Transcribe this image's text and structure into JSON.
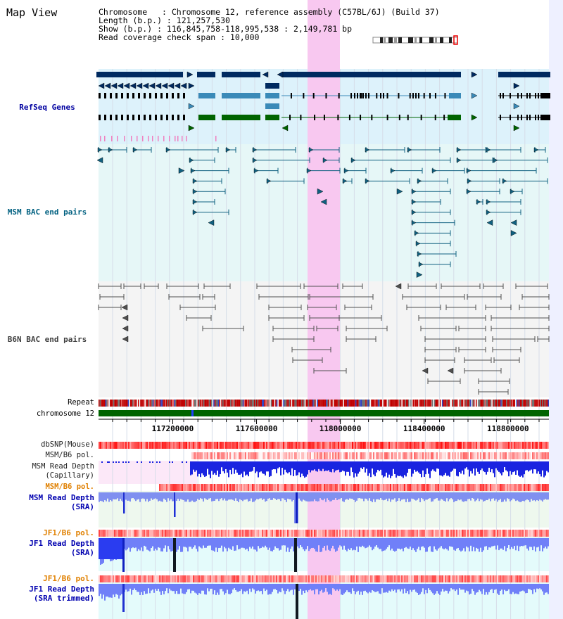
{
  "title": "Map View",
  "info": {
    "chromosome_line": "Chromosome   : Chromosome 12, reference assembly (C57BL/6J) (Build 37)",
    "length_line": "Length (b.p.) : 121,257,530",
    "show_line": "Show (b.p.) : 116,845,758-118,995,538 : 2,149,781 bp",
    "coverage_line": "Read coverage check span : 10,000"
  },
  "track_labels": {
    "refseq": "RefSeq Genes",
    "msm_bac": "MSM BAC end pairs",
    "b6n_bac": "B6N BAC end pairs",
    "repeat": "Repeat",
    "chromosome": "chromosome 12",
    "dbsnp": "dbSNP(Mouse)",
    "msm_b6_pol_1": "MSM/B6 pol.",
    "msm_depth_cap_1": "MSM Read Depth",
    "msm_depth_cap_2": "(Capillary)",
    "msm_b6_pol_2": "MSM/B6 pol.",
    "msm_depth_sra_1": "MSM Read Depth",
    "msm_depth_sra_2": "(SRA)",
    "jf1_b6_pol_1": "JF1/B6 pol.",
    "jf1_depth_sra_1": "JF1 Read Depth",
    "jf1_depth_sra_2": "(SRA)",
    "jf1_b6_pol_2": "JF1/B6 pol.",
    "jf1_depth_trim_1": "JF1 Read Depth",
    "jf1_depth_trim_2": "(SRA trimmed)"
  },
  "colors": {
    "refseq_label": "#0000a0",
    "msm_label": "#006080",
    "b6n_label": "#404040",
    "pol_label": "#e08000",
    "depth_label": "#0000b0",
    "highlight": "#f8c8f0",
    "gene_dark": "#002a60",
    "gene_mid": "#3a8ab8",
    "gene_green": "#006400"
  },
  "axis": {
    "start_bp": 116845758,
    "end_bp": 118995538,
    "ticks": [
      117200000,
      117600000,
      118000000,
      118400000,
      118800000
    ],
    "tick_labels": [
      "117200000",
      "117600000",
      "118000000",
      "118400000",
      "118800000"
    ]
  }
}
